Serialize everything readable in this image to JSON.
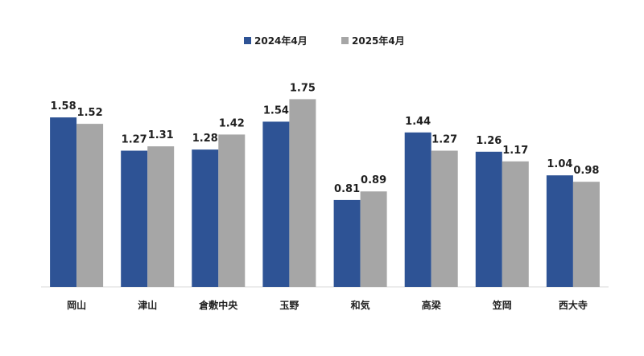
{
  "chart_data": {
    "type": "bar",
    "categories": [
      "岡山",
      "津山",
      "倉敷中央",
      "玉野",
      "和気",
      "高梁",
      "笠岡",
      "西大寺"
    ],
    "series": [
      {
        "name": "2024年4月",
        "color": "#2e5395",
        "values": [
          1.58,
          1.27,
          1.28,
          1.54,
          0.81,
          1.44,
          1.26,
          1.04
        ],
        "labels": [
          "1.58",
          "1.27",
          "1.28",
          "1.54",
          "0.81",
          "1.44",
          "1.26",
          "1.04"
        ]
      },
      {
        "name": "2025年4月",
        "color": "#a6a6a6",
        "values": [
          1.52,
          1.31,
          1.42,
          1.75,
          0.89,
          1.27,
          1.17,
          0.98
        ],
        "labels": [
          "1.52",
          "1.31",
          "1.42",
          "1.75",
          "0.89",
          "1.27",
          "1.17",
          "0.98"
        ]
      }
    ],
    "title": "",
    "xlabel": "",
    "ylabel": "",
    "ylim": [
      0,
      2.0
    ],
    "grid": false,
    "legend": "top-center",
    "axis_line_color": "#d9d9d9"
  }
}
